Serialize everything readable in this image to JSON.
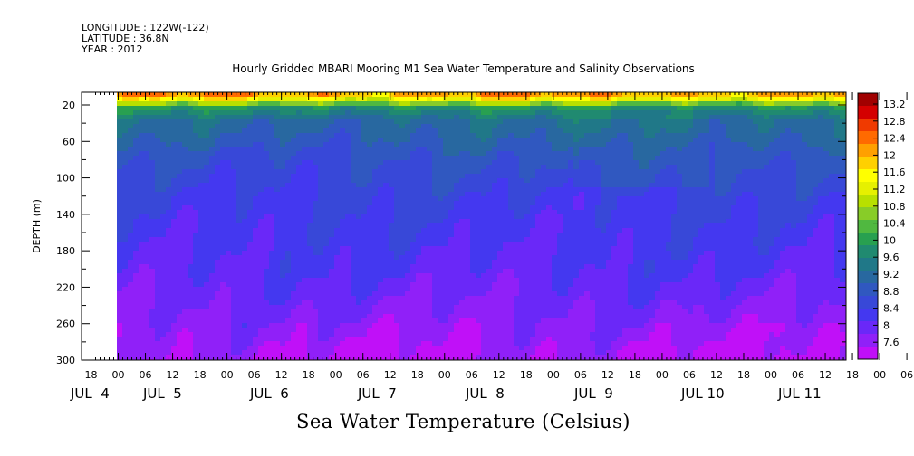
{
  "meta": {
    "longitude": "LONGITUDE : 122W(-122)",
    "latitude": "LATITUDE : 36.8N",
    "year": "YEAR : 2012"
  },
  "chart_data": {
    "type": "heatmap",
    "title": "Hourly Gridded MBARI Mooring M1 Sea Water Temperature and Salinity Observations",
    "subtitle": "Sea Water Temperature (Celsius)",
    "ylabel": "DEPTH (m)",
    "xlabel": "",
    "y_ticks": [
      20,
      60,
      100,
      140,
      180,
      220,
      260,
      300
    ],
    "ylim": [
      300,
      5
    ],
    "y_direction": "depth increasing downward",
    "x_hour_ticks": [
      "18",
      "00",
      "06",
      "12",
      "18",
      "00",
      "06",
      "12",
      "18",
      "00",
      "06",
      "12",
      "18",
      "00",
      "06",
      "12",
      "18",
      "00",
      "06",
      "12",
      "18",
      "00",
      "06",
      "12",
      "18",
      "00",
      "06",
      "12",
      "18",
      "00",
      "06",
      "12"
    ],
    "x_day_labels": [
      "JUL  4",
      "JUL  5",
      "JUL  6",
      "JUL  7",
      "JUL  8",
      "JUL  9",
      "JUL 10",
      "JUL 11"
    ],
    "data_start": "JUL 5 00:00",
    "data_end": "JUL 11 ~18:00",
    "colorbar": {
      "levels": [
        "13.2",
        "12.8",
        "12.4",
        "12",
        "11.6",
        "11.2",
        "10.8",
        "10.4",
        "10",
        "9.6",
        "9.2",
        "8.8",
        "8.4",
        "8",
        "7.6"
      ],
      "range": [
        7.6,
        13.4
      ],
      "colors": [
        "#a00000",
        "#d40000",
        "#f03a00",
        "#ff6a00",
        "#ffa000",
        "#ffd000",
        "#ffff00",
        "#e6f000",
        "#b8e000",
        "#88cc28",
        "#50b840",
        "#28a050",
        "#208a70",
        "#207888",
        "#2868a0",
        "#3058c0",
        "#3848d8",
        "#4438f0",
        "#6a28f8",
        "#9020f8",
        "#c010f8"
      ]
    },
    "grid": false
  }
}
